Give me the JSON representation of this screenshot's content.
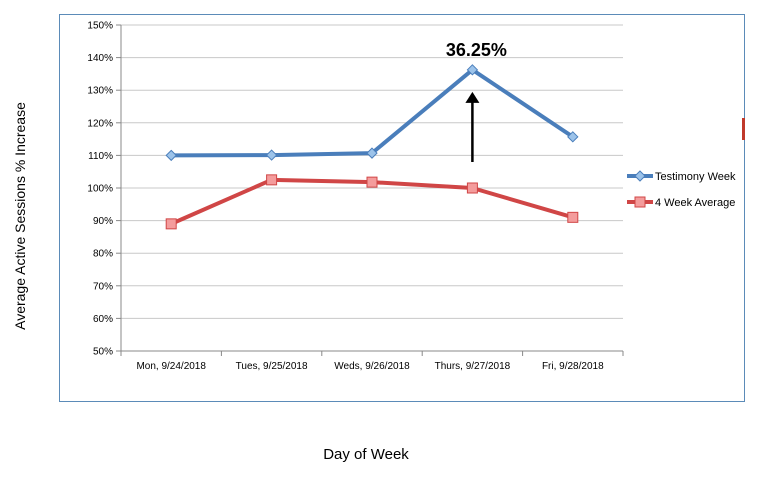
{
  "chart_data": {
    "type": "line",
    "categories": [
      "Mon, 9/24/2018",
      "Tues, 9/25/2018",
      "Weds, 9/26/2018",
      "Thurs, 9/27/2018",
      "Fri, 9/28/2018"
    ],
    "series": [
      {
        "name": "Testimony Week",
        "values": [
          110.0,
          110.1,
          110.7,
          136.25,
          115.7
        ],
        "color": "#4a7ebb",
        "marker": "diamond"
      },
      {
        "name": "4 Week Average",
        "values": [
          89.0,
          102.5,
          101.8,
          100.0,
          91.0
        ],
        "color": "#d04646",
        "marker": "square"
      }
    ],
    "ylim": [
      50,
      150
    ],
    "yticks": [
      "50%",
      "60%",
      "70%",
      "80%",
      "90%",
      "100%",
      "110%",
      "120%",
      "130%",
      "140%",
      "150%"
    ],
    "ylabel": "Average Active Sessions % Increase",
    "xlabel": "Day of Week",
    "grid": "horizontal",
    "legend": "right",
    "annotation": {
      "text": "36.25%",
      "category_index": 3,
      "arrow_from": 100,
      "arrow_to": 136.25
    }
  }
}
